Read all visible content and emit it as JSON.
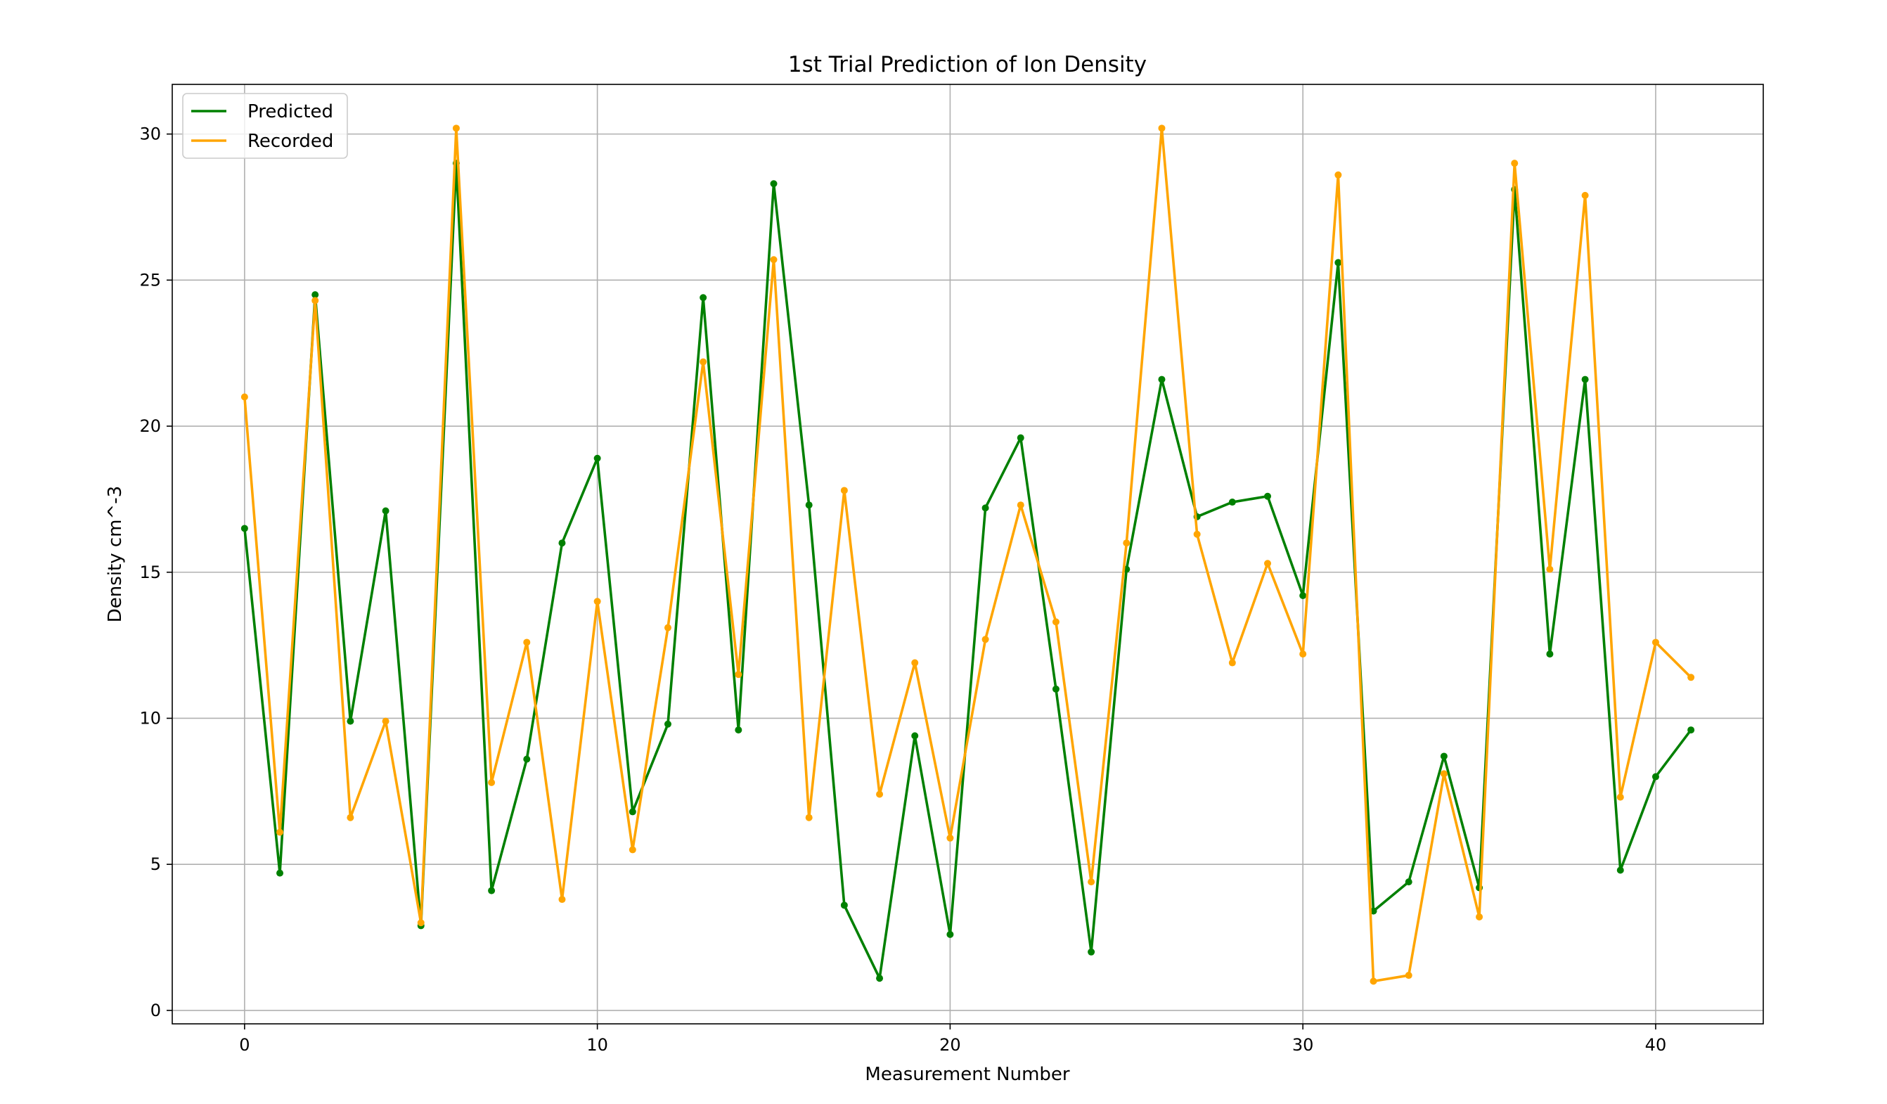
{
  "chart_data": {
    "type": "line",
    "title": "1st Trial Prediction of Ion Density",
    "xlabel": "Measurement Number",
    "ylabel": "Density cm^-3",
    "xlim": [
      -2.05,
      43.05
    ],
    "ylim": [
      -0.46,
      31.7
    ],
    "xticks": [
      0,
      10,
      20,
      30,
      40
    ],
    "yticks": [
      0,
      5,
      10,
      15,
      20,
      25,
      30
    ],
    "grid": true,
    "legend_position": "top-left",
    "x": [
      0,
      1,
      2,
      3,
      4,
      5,
      6,
      7,
      8,
      9,
      10,
      11,
      12,
      13,
      14,
      15,
      16,
      17,
      18,
      19,
      20,
      21,
      22,
      23,
      24,
      25,
      26,
      27,
      28,
      29,
      30,
      31,
      32,
      33,
      34,
      35,
      36,
      37,
      38,
      39,
      40,
      41
    ],
    "series": [
      {
        "name": "Predicted",
        "color": "#008000",
        "values": [
          16.5,
          4.7,
          24.5,
          9.9,
          17.1,
          2.9,
          29.0,
          4.1,
          8.6,
          16.0,
          18.9,
          6.8,
          9.8,
          24.4,
          9.6,
          28.3,
          17.3,
          3.6,
          1.1,
          9.4,
          2.6,
          17.2,
          19.6,
          11.0,
          2.0,
          15.1,
          21.6,
          16.9,
          17.4,
          17.6,
          14.2,
          25.6,
          3.4,
          4.4,
          8.7,
          4.2,
          28.1,
          12.2,
          21.6,
          4.8,
          8.0,
          9.6
        ]
      },
      {
        "name": "Recorded",
        "color": "#FFA500",
        "values": [
          21.0,
          6.1,
          24.3,
          6.6,
          9.9,
          3.0,
          30.2,
          7.8,
          12.6,
          3.8,
          14.0,
          5.5,
          13.1,
          22.2,
          11.5,
          25.7,
          6.6,
          17.8,
          7.4,
          11.9,
          5.9,
          12.7,
          17.3,
          13.3,
          4.4,
          16.0,
          30.2,
          16.3,
          11.9,
          15.3,
          12.2,
          28.6,
          1.0,
          1.2,
          8.1,
          3.2,
          29.0,
          15.1,
          27.9,
          7.3,
          12.6,
          11.4
        ]
      }
    ]
  }
}
